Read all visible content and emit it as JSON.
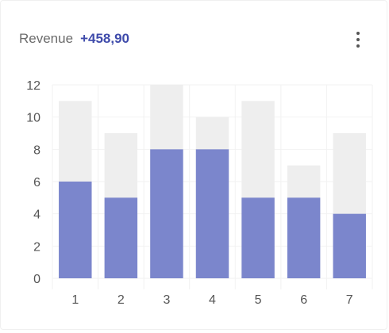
{
  "card": {
    "title": "Revenue",
    "value": "+458,90",
    "menu_icon": "more-vertical-icon"
  },
  "colors": {
    "primary": "#7b86cc",
    "background_bar": "#eeeeee",
    "accent_text": "#3f4bab"
  },
  "chart_data": {
    "type": "bar",
    "stacked": "overlay",
    "categories": [
      "1",
      "2",
      "3",
      "4",
      "5",
      "6",
      "7"
    ],
    "series": [
      {
        "values": [
          11,
          9,
          12,
          10,
          11,
          7,
          9
        ]
      },
      {
        "values": [
          6,
          5,
          8,
          8,
          5,
          5,
          4
        ]
      }
    ],
    "y_ticks": [
      0,
      2,
      4,
      6,
      8,
      10,
      12
    ],
    "ylim": [
      0,
      12
    ],
    "grid": true,
    "legend": "none"
  }
}
